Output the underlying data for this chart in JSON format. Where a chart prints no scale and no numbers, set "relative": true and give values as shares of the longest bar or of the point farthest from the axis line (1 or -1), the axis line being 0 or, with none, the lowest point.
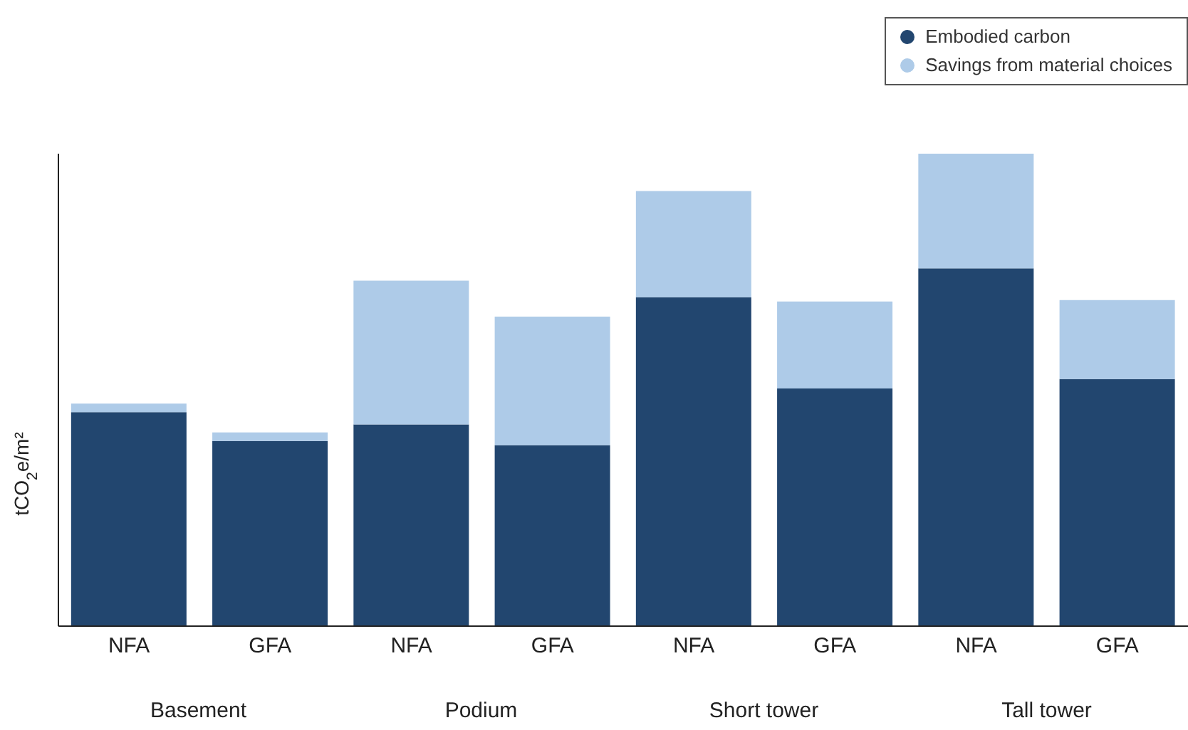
{
  "chart_data": {
    "type": "bar",
    "stacked": true,
    "relative": true,
    "ylabel": "tCO$_{2}$e/m²",
    "legend": "top right",
    "categories": [
      "NFA",
      "GFA",
      "NFA",
      "GFA",
      "NFA",
      "GFA",
      "NFA",
      "GFA"
    ],
    "annotations": [
      "Basement",
      "Podium",
      "Short tower",
      "Tall tower"
    ],
    "series": [
      {
        "name": "Embodied carbon",
        "color": "#22466f",
        "values": [
          0.453,
          0.392,
          0.427,
          0.383,
          0.696,
          0.503,
          0.757,
          0.523
        ]
      },
      {
        "name": "Savings from material choices",
        "color": "#aecbe8",
        "values": [
          0.018,
          0.018,
          0.304,
          0.272,
          0.225,
          0.184,
          0.243,
          0.167
        ]
      }
    ]
  }
}
